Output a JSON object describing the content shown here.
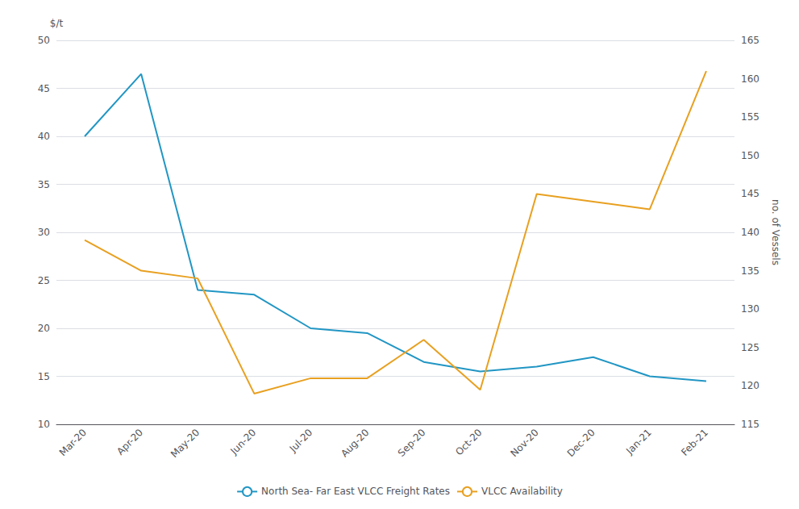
{
  "chart_data": {
    "type": "line",
    "categories": [
      "Mar-20",
      "Apr-20",
      "May-20",
      "Jun-20",
      "Jul-20",
      "Aug-20",
      "Sep-20",
      "Oct-20",
      "Nov-20",
      "Dec-20",
      "Jan-21",
      "Feb-21"
    ],
    "series": [
      {
        "name": "North Sea- Far East VLCC Freight Rates",
        "color": "#2196C4",
        "axis": "y",
        "values": [
          40,
          46.5,
          24,
          23.5,
          20,
          19.5,
          16.5,
          15.5,
          16,
          17,
          15,
          14.5
        ]
      },
      {
        "name": "VLCC Availability",
        "color": "#E8A020",
        "axis": "y2",
        "values": [
          139,
          135,
          134,
          119,
          121,
          121,
          126,
          119.5,
          145,
          144,
          143,
          161
        ]
      }
    ],
    "ylabel": "$/t",
    "y2label": "no. of Vessels",
    "ylim": [
      10,
      50
    ],
    "yticks": [
      10,
      15,
      20,
      25,
      30,
      35,
      40,
      45,
      50
    ],
    "y2lim": [
      115,
      165
    ],
    "y2ticks": [
      115,
      120,
      125,
      130,
      135,
      140,
      145,
      150,
      155,
      160,
      165
    ],
    "grid": true,
    "legend": "bottom"
  }
}
